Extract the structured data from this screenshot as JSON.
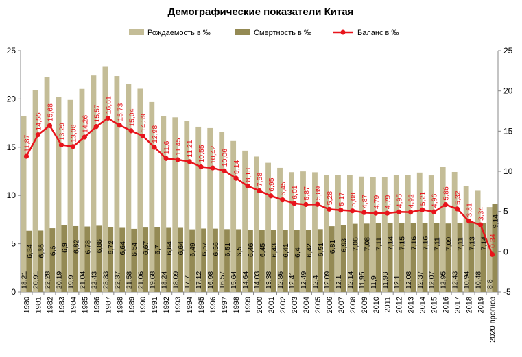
{
  "chart_data": {
    "type": "bar",
    "title": "Демографические показатели Китая",
    "legend": {
      "placement": "top",
      "items": [
        {
          "name": "Рождаемость в ‰",
          "kind": "bar",
          "color": "#c4bd97"
        },
        {
          "name": "Смертность в ‰",
          "kind": "bar",
          "color": "#948a54"
        },
        {
          "name": "Баланс в ‰",
          "kind": "line",
          "color": "#e8141b"
        }
      ]
    },
    "categories": [
      "1980",
      "1981",
      "1982",
      "1983",
      "1984",
      "1985",
      "1986",
      "1987",
      "1988",
      "1989",
      "1990",
      "1991",
      "1992",
      "1993",
      "1994",
      "1995",
      "1996",
      "1997",
      "1998",
      "1999",
      "2000",
      "2001",
      "2002",
      "2003",
      "2004",
      "2005",
      "2006",
      "2007",
      "2008",
      "2009",
      "2010",
      "2011",
      "2012",
      "2013",
      "2014",
      "2015",
      "2016",
      "2017",
      "2018",
      "2019",
      "2020 прогноз"
    ],
    "series": [
      {
        "name": "Рождаемость в ‰",
        "axis": "left",
        "values": [
          18.21,
          20.91,
          22.28,
          20.19,
          19.9,
          21.04,
          22.43,
          23.33,
          22.37,
          21.58,
          21.06,
          19.68,
          18.24,
          18.09,
          17.7,
          17.12,
          16.98,
          16.57,
          15.64,
          14.64,
          14.03,
          13.38,
          12.86,
          12.41,
          12.49,
          12.4,
          12.09,
          12.1,
          12.14,
          11.95,
          11.9,
          11.93,
          12.1,
          12.08,
          12.37,
          12.07,
          12.95,
          12.43,
          10.94,
          10.48,
          8.8
        ]
      },
      {
        "name": "Смертность в ‰",
        "axis": "left",
        "values": [
          6.34,
          6.36,
          6.6,
          6.9,
          6.82,
          6.78,
          6.86,
          6.72,
          6.64,
          6.54,
          6.67,
          6.7,
          6.64,
          6.64,
          6.49,
          6.57,
          6.56,
          6.51,
          6.5,
          6.46,
          6.45,
          6.43,
          6.41,
          6.4,
          6.42,
          6.51,
          6.81,
          6.93,
          7.06,
          7.08,
          7.11,
          7.14,
          7.15,
          7.16,
          7.16,
          7.11,
          7.09,
          7.11,
          7.13,
          7.14,
          9.14
        ]
      },
      {
        "name": "Баланс в ‰",
        "axis": "right",
        "values": [
          11.87,
          14.55,
          15.68,
          13.29,
          13.08,
          14.26,
          15.57,
          16.61,
          15.73,
          15.04,
          14.39,
          12.98,
          11.6,
          11.45,
          11.21,
          10.55,
          10.42,
          10.06,
          9.14,
          8.18,
          7.58,
          6.95,
          6.45,
          6.01,
          5.87,
          5.89,
          5.28,
          5.17,
          5.08,
          4.87,
          4.79,
          4.79,
          4.95,
          4.92,
          5.21,
          4.96,
          5.86,
          5.32,
          3.81,
          3.34,
          -0.34
        ]
      }
    ],
    "label_text": {
      "birth": [
        "18,21",
        "20,91",
        "22,28",
        "20,19",
        "19,9",
        "21,04",
        "22,43",
        "23,33",
        "22,37",
        "21,58",
        "21,06",
        "19,68",
        "18,24",
        "18,09",
        "17,7",
        "17,12",
        "16,98",
        "16,57",
        "15,64",
        "14,64",
        "14,03",
        "13,38",
        "12,86",
        "12,41",
        "12,49",
        "12,4",
        "12,09",
        "12,1",
        "12,14",
        "11,95",
        "11,9",
        "11,93",
        "12,1",
        "12,08",
        "12,37",
        "12,07",
        "12,95",
        "12,43",
        "10,94",
        "10,48",
        "8,8"
      ],
      "death": [
        "6,34",
        "6,36",
        "6,6",
        "6,9",
        "6,82",
        "6,78",
        "6,86",
        "6,72",
        "6,64",
        "6,54",
        "6,67",
        "6,7",
        "6,64",
        "6,64",
        "6,49",
        "6,57",
        "6,56",
        "6,51",
        "6,5",
        "6,46",
        "6,45",
        "6,43",
        "6,41",
        "6,4",
        "6,42",
        "6,51",
        "6,81",
        "6,93",
        "7,06",
        "7,08",
        "7,11",
        "7,14",
        "7,15",
        "7,16",
        "7,16",
        "7,11",
        "7,09",
        "7,11",
        "7,13",
        "7,14",
        "9,14"
      ],
      "balance": [
        "11,87",
        "14,55",
        "15,68",
        "13,29",
        "13,08",
        "14,26",
        "15,57",
        "16,61",
        "15,73",
        "15,04",
        "14,39",
        "12,98",
        "11,6",
        "11,45",
        "11,21",
        "10,55",
        "10,42",
        "10,06",
        "9,14",
        "8,18",
        "7,58",
        "6,95",
        "6,45",
        "6,01",
        "5,87",
        "5,89",
        "5,28",
        "5,17",
        "5,08",
        "4,87",
        "4,79",
        "4,79",
        "4,95",
        "4,92",
        "5,21",
        "4,96",
        "5,86",
        "5,32",
        "3,81",
        "3,34",
        "-0,34"
      ]
    },
    "left_axis": {
      "range": [
        0,
        25
      ],
      "ticks": [
        "0",
        "5",
        "10",
        "15",
        "20",
        "25"
      ]
    },
    "right_axis": {
      "range": [
        -5,
        25
      ],
      "ticks": [
        "-5",
        "0",
        "5",
        "10",
        "15",
        "20",
        "25"
      ]
    },
    "grid": false,
    "colors": {
      "label": "#000000",
      "balance_label": "#e8141b",
      "axis": "#888888"
    }
  }
}
